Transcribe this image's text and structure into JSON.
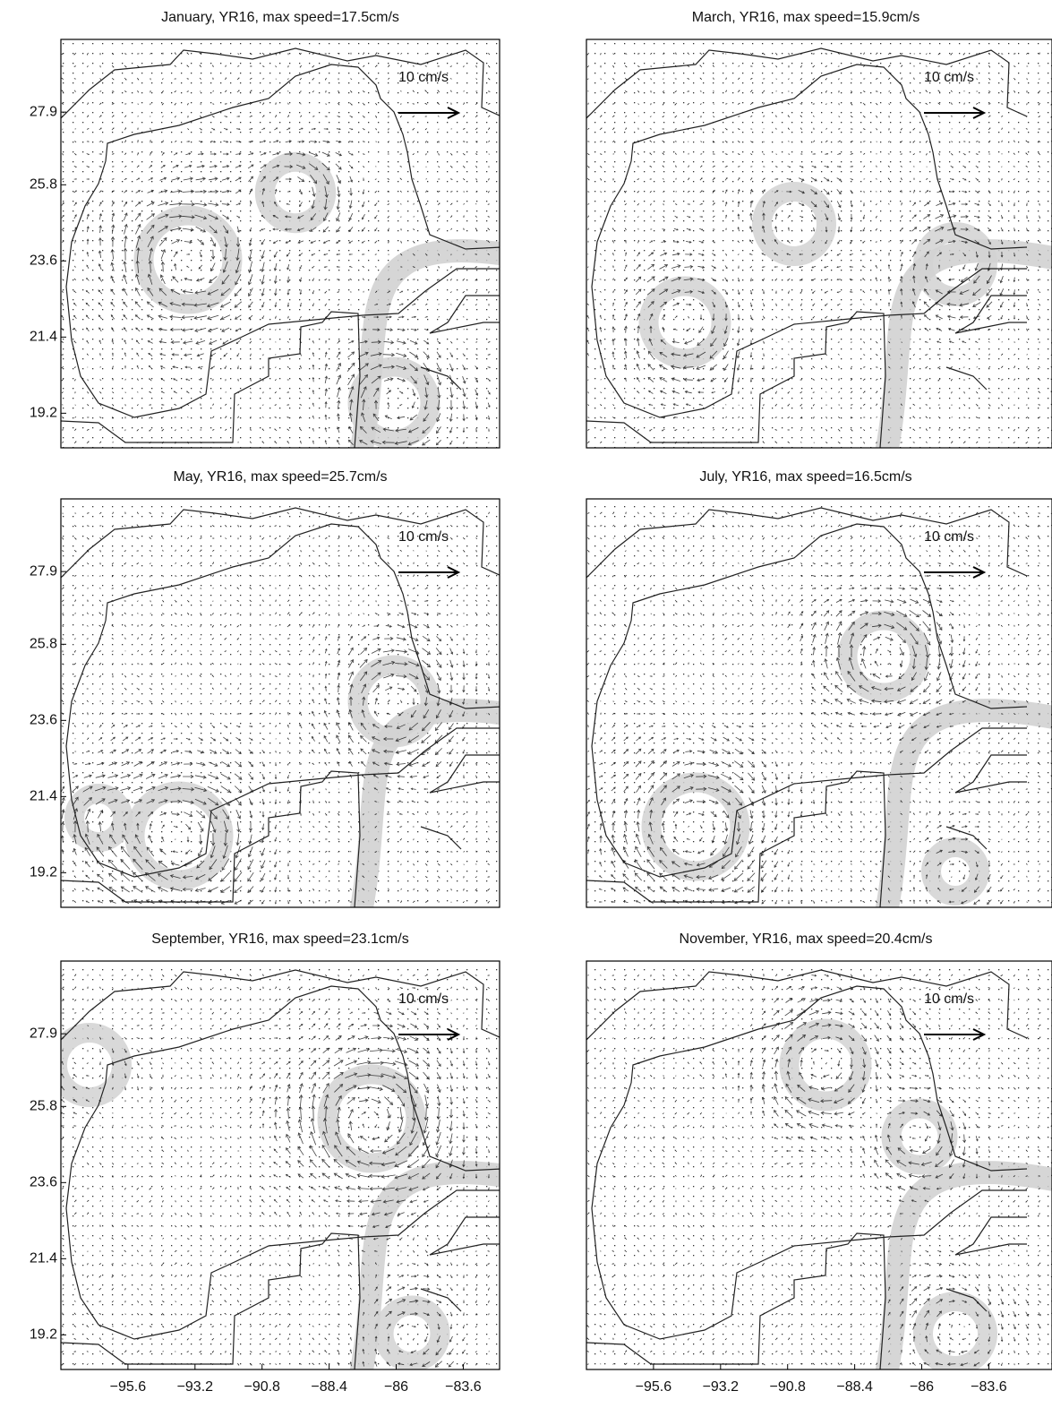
{
  "chart_data": [
    {
      "type": "quiver",
      "title": "January, YR16, max speed=17.5cm/s",
      "annotation": "10 cm/s",
      "xlim": [
        -98,
        -82.3
      ],
      "ylim": [
        18.2,
        30
      ],
      "yticks": [
        27.9,
        25.8,
        23.6,
        21.4,
        19.2
      ]
    },
    {
      "type": "quiver",
      "title": "March, YR16, max speed=15.9cm/s",
      "annotation": "10 cm/s",
      "xlim": [
        -98,
        -82.3
      ],
      "ylim": [
        18.2,
        30
      ]
    },
    {
      "type": "quiver",
      "title": "May, YR16, max speed=25.7cm/s",
      "annotation": "10 cm/s",
      "xlim": [
        -98,
        -82.3
      ],
      "ylim": [
        18.2,
        30
      ],
      "yticks": [
        27.9,
        25.8,
        23.6,
        21.4,
        19.2
      ]
    },
    {
      "type": "quiver",
      "title": "July, YR16, max speed=16.5cm/s",
      "annotation": "10 cm/s",
      "xlim": [
        -98,
        -82.3
      ],
      "ylim": [
        18.2,
        30
      ]
    },
    {
      "type": "quiver",
      "title": "September, YR16, max speed=23.1cm/s",
      "annotation": "10 cm/s",
      "xlim": [
        -98,
        -82.3
      ],
      "ylim": [
        18.2,
        30
      ],
      "yticks": [
        27.9,
        25.8,
        23.6,
        21.4,
        19.2
      ],
      "xticks": [
        {
          "value": -95.6,
          "label": "−95.6"
        },
        {
          "value": -93.2,
          "label": "−93.2"
        },
        {
          "value": -90.8,
          "label": "−90.8"
        },
        {
          "value": -88.4,
          "label": "−88.4"
        },
        {
          "value": -86,
          "label": "−86"
        },
        {
          "value": -83.6,
          "label": "−83.6"
        }
      ]
    },
    {
      "type": "quiver",
      "title": "November, YR16, max speed=20.4cm/s",
      "annotation": "10 cm/s",
      "xlim": [
        -98,
        -82.3
      ],
      "ylim": [
        18.2,
        30
      ],
      "xticks": [
        {
          "value": -95.6,
          "label": "−95.6"
        },
        {
          "value": -93.2,
          "label": "−93.2"
        },
        {
          "value": -90.8,
          "label": "−90.8"
        },
        {
          "value": -88.4,
          "label": "−88.4"
        },
        {
          "value": -86,
          "label": "−86"
        },
        {
          "value": -83.6,
          "label": "−83.6"
        }
      ]
    }
  ]
}
